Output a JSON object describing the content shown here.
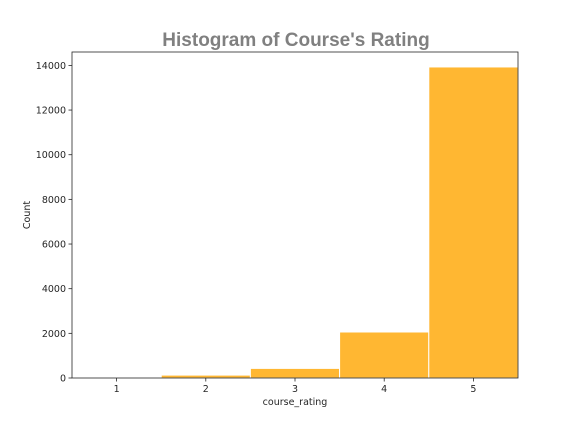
{
  "chart_data": {
    "type": "bar",
    "title": "Histogram of Course's Rating",
    "xlabel": "course_rating",
    "ylabel": "Count",
    "categories": [
      "1",
      "2",
      "3",
      "4",
      "5"
    ],
    "values": [
      15,
      130,
      430,
      2060,
      13930
    ],
    "xlim": [
      0.5,
      5.5
    ],
    "ylim": [
      0,
      14600
    ],
    "yticks": [
      "0",
      "2000",
      "4000",
      "6000",
      "8000",
      "10000",
      "12000",
      "14000"
    ],
    "bar_color": "#ffb732",
    "bar_edge_color": "#ffffff",
    "grid": false
  }
}
